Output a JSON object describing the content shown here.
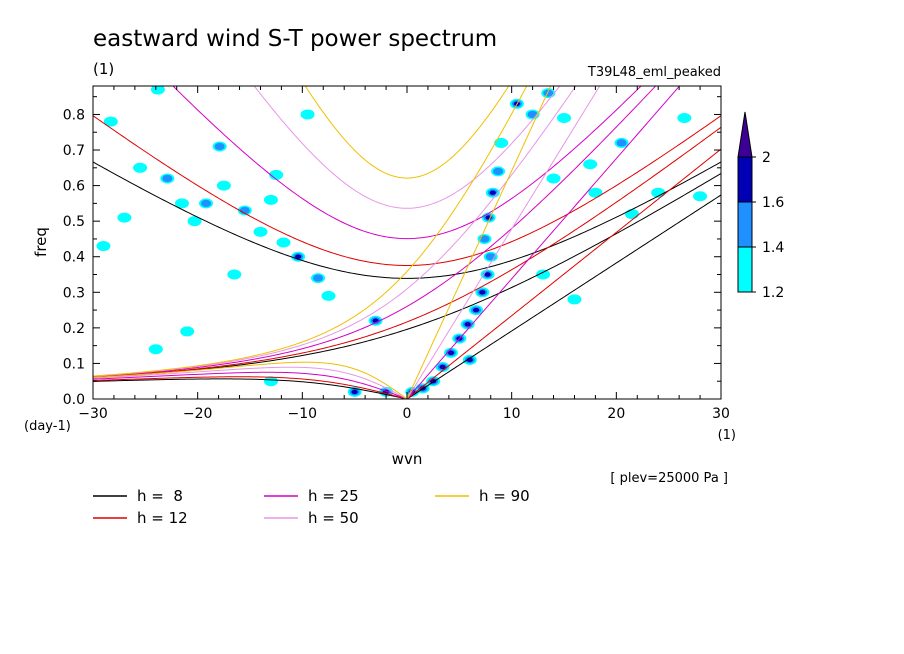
{
  "chart_data": {
    "type": "contour",
    "title": "eastward wind S-T power spectrum",
    "subtitle_left": "(1)",
    "subtitle_right": "T39L48_eml_peaked",
    "xlabel": "wvn",
    "ylabel": "freq",
    "x_unit": "(1)",
    "y_unit": "(day-1)",
    "level_note": "[ plev=25000 Pa ]",
    "xlim": [
      -30,
      30
    ],
    "ylim": [
      0,
      0.88
    ],
    "x_ticks": [
      -30,
      -20,
      -10,
      0,
      10,
      20,
      30
    ],
    "x_tick_labels": [
      "−30",
      "−20",
      "−10",
      "0",
      "10",
      "20",
      "30"
    ],
    "y_ticks": [
      0.0,
      0.1,
      0.2,
      0.3,
      0.4,
      0.5,
      0.6,
      0.7,
      0.8
    ],
    "y_tick_labels": [
      "0.0",
      "0.1",
      "0.2",
      "0.3",
      "0.4",
      "0.5",
      "0.6",
      "0.7",
      "0.8"
    ],
    "colorbar": {
      "levels": [
        1.2,
        1.4,
        1.6,
        2
      ],
      "labels": [
        "1.2",
        "1.4",
        "1.6",
        "2"
      ],
      "colors": [
        "#00ffff",
        "#1e90ff",
        "#0000b4",
        "#3c0096"
      ]
    },
    "dispersion_curves": [
      {
        "label": "h =  8",
        "h": 8,
        "color": "#000000"
      },
      {
        "label": "h = 12",
        "h": 12,
        "color": "#e00000"
      },
      {
        "label": "h = 25",
        "h": 25,
        "color": "#d400c8"
      },
      {
        "label": "h = 50",
        "h": 50,
        "color": "#e896e8"
      },
      {
        "label": "h = 90",
        "h": 90,
        "color": "#f0c000"
      }
    ],
    "power_blobs": [
      {
        "k": -28.3,
        "f": 0.78,
        "lvl": 1
      },
      {
        "k": -25.5,
        "f": 0.65,
        "lvl": 1
      },
      {
        "k": -23.8,
        "f": 0.87,
        "lvl": 1
      },
      {
        "k": -22.9,
        "f": 0.62,
        "lvl": 2
      },
      {
        "k": -21.5,
        "f": 0.55,
        "lvl": 1
      },
      {
        "k": -20.3,
        "f": 0.5,
        "lvl": 1
      },
      {
        "k": -19.2,
        "f": 0.55,
        "lvl": 2
      },
      {
        "k": -17.9,
        "f": 0.71,
        "lvl": 2
      },
      {
        "k": -17.5,
        "f": 0.6,
        "lvl": 1
      },
      {
        "k": -15.5,
        "f": 0.53,
        "lvl": 2
      },
      {
        "k": -14.0,
        "f": 0.47,
        "lvl": 1
      },
      {
        "k": -13.0,
        "f": 0.56,
        "lvl": 1
      },
      {
        "k": -11.8,
        "f": 0.44,
        "lvl": 1
      },
      {
        "k": -10.4,
        "f": 0.4,
        "lvl": 3
      },
      {
        "k": -8.5,
        "f": 0.34,
        "lvl": 2
      },
      {
        "k": -7.5,
        "f": 0.29,
        "lvl": 1
      },
      {
        "k": -9.5,
        "f": 0.8,
        "lvl": 1
      },
      {
        "k": -16.5,
        "f": 0.35,
        "lvl": 1
      },
      {
        "k": -12.5,
        "f": 0.63,
        "lvl": 1
      },
      {
        "k": -29.0,
        "f": 0.43,
        "lvl": 1
      },
      {
        "k": -27.0,
        "f": 0.51,
        "lvl": 1
      },
      {
        "k": -3.0,
        "f": 0.22,
        "lvl": 3
      },
      {
        "k": -5.0,
        "f": 0.02,
        "lvl": 3
      },
      {
        "k": -2.0,
        "f": 0.02,
        "lvl": 3
      },
      {
        "k": 0.5,
        "f": 0.02,
        "lvl": 4
      },
      {
        "k": 1.5,
        "f": 0.03,
        "lvl": 4
      },
      {
        "k": 2.5,
        "f": 0.05,
        "lvl": 4
      },
      {
        "k": 3.4,
        "f": 0.09,
        "lvl": 4
      },
      {
        "k": 4.2,
        "f": 0.13,
        "lvl": 4
      },
      {
        "k": 5.0,
        "f": 0.17,
        "lvl": 4
      },
      {
        "k": 5.8,
        "f": 0.21,
        "lvl": 4
      },
      {
        "k": 6.6,
        "f": 0.25,
        "lvl": 3
      },
      {
        "k": 7.2,
        "f": 0.3,
        "lvl": 4
      },
      {
        "k": 7.7,
        "f": 0.35,
        "lvl": 3
      },
      {
        "k": 6.0,
        "f": 0.11,
        "lvl": 4
      },
      {
        "k": 8.0,
        "f": 0.4,
        "lvl": 2
      },
      {
        "k": 7.4,
        "f": 0.45,
        "lvl": 2
      },
      {
        "k": 7.8,
        "f": 0.51,
        "lvl": 3
      },
      {
        "k": 8.2,
        "f": 0.58,
        "lvl": 3
      },
      {
        "k": 8.7,
        "f": 0.64,
        "lvl": 2
      },
      {
        "k": 9.0,
        "f": 0.72,
        "lvl": 1
      },
      {
        "k": 10.5,
        "f": 0.83,
        "lvl": 3
      },
      {
        "k": 12.0,
        "f": 0.8,
        "lvl": 2
      },
      {
        "k": 13.5,
        "f": 0.86,
        "lvl": 2
      },
      {
        "k": 15.0,
        "f": 0.79,
        "lvl": 1
      },
      {
        "k": 17.5,
        "f": 0.66,
        "lvl": 1
      },
      {
        "k": 20.5,
        "f": 0.72,
        "lvl": 2
      },
      {
        "k": 21.5,
        "f": 0.52,
        "lvl": 1
      },
      {
        "k": 24.0,
        "f": 0.58,
        "lvl": 1
      },
      {
        "k": 26.5,
        "f": 0.79,
        "lvl": 1
      },
      {
        "k": 28.0,
        "f": 0.57,
        "lvl": 1
      },
      {
        "k": 18.0,
        "f": 0.58,
        "lvl": 1
      },
      {
        "k": 13.0,
        "f": 0.35,
        "lvl": 1
      },
      {
        "k": 16.0,
        "f": 0.28,
        "lvl": 1
      },
      {
        "k": 14.0,
        "f": 0.62,
        "lvl": 1
      },
      {
        "k": -13.0,
        "f": 0.05,
        "lvl": 1
      },
      {
        "k": -21.0,
        "f": 0.19,
        "lvl": 1
      },
      {
        "k": -24.0,
        "f": 0.14,
        "lvl": 1
      }
    ]
  }
}
